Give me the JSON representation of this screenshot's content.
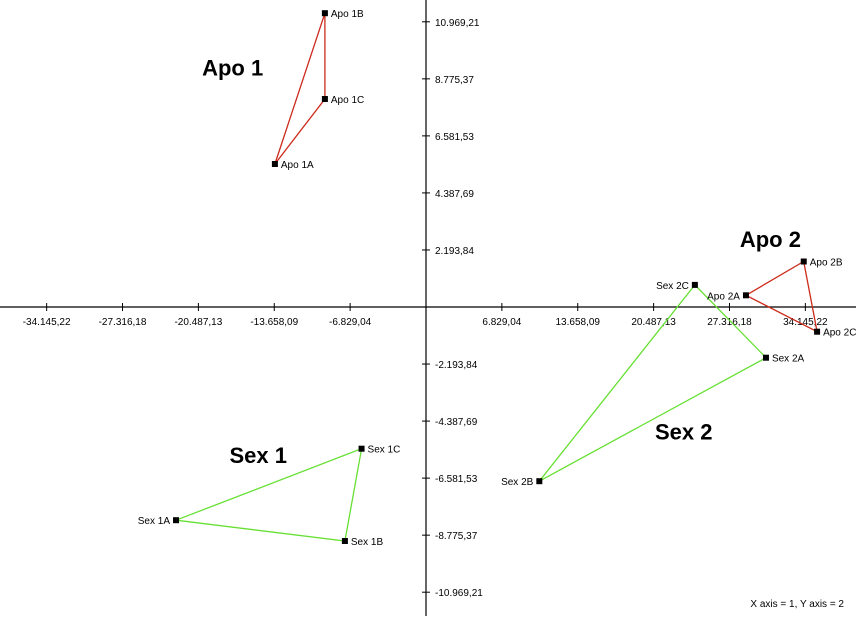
{
  "chart_data": {
    "type": "scatter",
    "title": "",
    "xlabel": "",
    "ylabel": "",
    "xlim": [
      -38.5,
      39
    ],
    "ylim": [
      -12.6,
      13.5
    ],
    "grid": false,
    "x_ticks": [
      {
        "value": -34.14522,
        "label": "-34.145,22"
      },
      {
        "value": -27.31618,
        "label": "-27.316,18"
      },
      {
        "value": -20.48713,
        "label": "-20.487,13"
      },
      {
        "value": -13.65809,
        "label": "-13.658,09"
      },
      {
        "value": -6.82904,
        "label": "-6.829,04"
      },
      {
        "value": 6.82904,
        "label": "6.829,04"
      },
      {
        "value": 13.65809,
        "label": "13.658,09"
      },
      {
        "value": 20.48713,
        "label": "20.487,13"
      },
      {
        "value": 27.31618,
        "label": "27.316,18"
      },
      {
        "value": 34.14522,
        "label": "34.145,22"
      }
    ],
    "y_ticks": [
      {
        "value": 10.96921,
        "label": "10.969,21"
      },
      {
        "value": 8.77537,
        "label": "8.775,37"
      },
      {
        "value": 6.58153,
        "label": "6.581,53"
      },
      {
        "value": 4.38769,
        "label": "4.387,69"
      },
      {
        "value": 2.19384,
        "label": "2.193,84"
      },
      {
        "value": -2.19384,
        "label": "-2.193,84"
      },
      {
        "value": -4.38769,
        "label": "-4.387,69"
      },
      {
        "value": -6.58153,
        "label": "-6.581,53"
      },
      {
        "value": -8.77537,
        "label": "-8.775,37"
      },
      {
        "value": -10.96921,
        "label": "-10.969,21"
      }
    ],
    "groups": [
      {
        "name": "Apo 1",
        "color": "#cc2a1a",
        "points": [
          {
            "label": "Apo 1A",
            "x": -13.6,
            "y": 5.5,
            "label_side": "right"
          },
          {
            "label": "Apo 1B",
            "x": -9.1,
            "y": 11.3,
            "label_side": "right"
          },
          {
            "label": "Apo 1C",
            "x": -9.1,
            "y": 8.0,
            "label_side": "right"
          }
        ]
      },
      {
        "name": "Apo 2",
        "color": "#cc2a1a",
        "points": [
          {
            "label": "Apo 2A",
            "x": 28.8,
            "y": 0.45,
            "label_side": "left"
          },
          {
            "label": "Apo 2B",
            "x": 34.0,
            "y": 1.75,
            "label_side": "right"
          },
          {
            "label": "Apo 2C",
            "x": 35.2,
            "y": -0.95,
            "label_side": "right"
          }
        ]
      },
      {
        "name": "Sex 1",
        "color": "#66e033",
        "points": [
          {
            "label": "Sex 1A",
            "x": -22.5,
            "y": -8.2,
            "label_side": "left"
          },
          {
            "label": "Sex 1B",
            "x": -7.3,
            "y": -9.0,
            "label_side": "right"
          },
          {
            "label": "Sex 1C",
            "x": -5.8,
            "y": -5.45,
            "label_side": "right"
          }
        ]
      },
      {
        "name": "Sex 2",
        "color": "#66e033",
        "points": [
          {
            "label": "Sex 2A",
            "x": 30.6,
            "y": -1.95,
            "label_side": "right"
          },
          {
            "label": "Sex 2B",
            "x": 10.2,
            "y": -6.7,
            "label_side": "left"
          },
          {
            "label": "Sex 2C",
            "x": 24.2,
            "y": 0.85,
            "label_side": "left"
          }
        ]
      }
    ],
    "group_labels": [
      {
        "text": "Apo 1",
        "x": -17.4,
        "y": 8.9
      },
      {
        "text": "Apo 2",
        "x": 31.0,
        "y": 2.3
      },
      {
        "text": "Sex 1",
        "x": -15.1,
        "y": -6.0
      },
      {
        "text": "Sex 2",
        "x": 23.2,
        "y": -5.1
      }
    ]
  },
  "footer": {
    "axis_note": "X axis = 1, Y axis = 2"
  }
}
